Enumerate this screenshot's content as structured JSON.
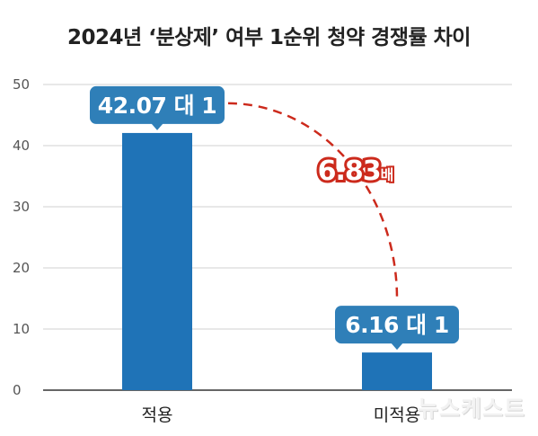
{
  "chart_data": {
    "type": "bar",
    "title": "2024년 ‘분상제’ 여부 1순위 청약 경쟁률 차이",
    "categories": [
      "적용",
      "미적용"
    ],
    "values": [
      42.07,
      6.16
    ],
    "value_labels": [
      "42.07 대 1",
      "6.16 대 1"
    ],
    "ylim": [
      0,
      50
    ],
    "yticks": [
      0,
      10,
      20,
      30,
      40,
      50
    ],
    "grid": true,
    "annotation": {
      "value": "6.83",
      "unit": "배"
    },
    "colors": {
      "bar": "#1f73b7",
      "callout": "#2f7fb8",
      "arrow": "#cc2a1c"
    }
  },
  "watermark": "뉴스케스트"
}
